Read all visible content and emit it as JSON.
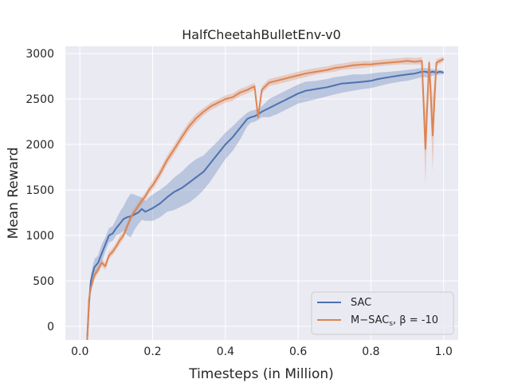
{
  "chart_data": {
    "type": "line",
    "title": "HalfCheetahBulletEnv-v0",
    "xlabel": "Timesteps (in Million)",
    "ylabel": "Mean Reward",
    "xlim": [
      -0.04,
      1.04
    ],
    "ylim": [
      -150,
      3080
    ],
    "xticks": [
      0.0,
      0.2,
      0.4,
      0.6,
      0.8,
      1.0
    ],
    "xtick_labels": [
      "0.0",
      "0.2",
      "0.4",
      "0.6",
      "0.8",
      "1.0"
    ],
    "yticks": [
      0,
      500,
      1000,
      1500,
      2000,
      2500,
      3000
    ],
    "ytick_labels": [
      "0",
      "500",
      "1000",
      "1500",
      "2000",
      "2500",
      "3000"
    ],
    "grid": true,
    "background": "#eaeaf2",
    "legend_position": "bottom-right",
    "series": [
      {
        "name": "SAC",
        "color": "#4c72b0",
        "x": [
          0.02,
          0.025,
          0.03,
          0.04,
          0.05,
          0.06,
          0.07,
          0.08,
          0.09,
          0.1,
          0.11,
          0.12,
          0.13,
          0.14,
          0.15,
          0.16,
          0.17,
          0.18,
          0.19,
          0.2,
          0.22,
          0.24,
          0.26,
          0.28,
          0.3,
          0.32,
          0.34,
          0.36,
          0.38,
          0.4,
          0.42,
          0.44,
          0.46,
          0.47,
          0.48,
          0.49,
          0.5,
          0.52,
          0.54,
          0.56,
          0.58,
          0.6,
          0.62,
          0.65,
          0.68,
          0.7,
          0.72,
          0.75,
          0.78,
          0.8,
          0.82,
          0.85,
          0.88,
          0.9,
          0.92,
          0.94,
          0.95,
          0.96,
          0.97,
          0.98,
          0.99,
          1.0
        ],
        "values": [
          -150,
          250,
          500,
          650,
          700,
          800,
          900,
          1000,
          1020,
          1080,
          1130,
          1180,
          1200,
          1210,
          1230,
          1250,
          1290,
          1260,
          1280,
          1300,
          1350,
          1420,
          1480,
          1520,
          1580,
          1640,
          1700,
          1800,
          1900,
          2000,
          2080,
          2180,
          2280,
          2300,
          2310,
          2330,
          2360,
          2400,
          2440,
          2480,
          2520,
          2560,
          2590,
          2610,
          2630,
          2650,
          2670,
          2680,
          2690,
          2700,
          2720,
          2740,
          2760,
          2770,
          2780,
          2800,
          2800,
          2790,
          2800,
          2790,
          2800,
          2790
        ],
        "lower": [
          -150,
          180,
          420,
          560,
          620,
          700,
          820,
          920,
          940,
          1000,
          1020,
          1050,
          1000,
          980,
          1060,
          1120,
          1170,
          1160,
          1160,
          1160,
          1200,
          1260,
          1280,
          1320,
          1360,
          1420,
          1500,
          1600,
          1720,
          1840,
          1930,
          2050,
          2200,
          2240,
          2250,
          2270,
          2300,
          2300,
          2330,
          2370,
          2410,
          2450,
          2470,
          2500,
          2530,
          2550,
          2570,
          2590,
          2610,
          2620,
          2640,
          2670,
          2690,
          2700,
          2720,
          2740,
          2740,
          2730,
          2760,
          2760,
          2770,
          2770
        ],
        "upper": [
          -150,
          320,
          580,
          740,
          780,
          900,
          980,
          1080,
          1100,
          1180,
          1260,
          1320,
          1400,
          1460,
          1450,
          1430,
          1420,
          1380,
          1420,
          1450,
          1500,
          1560,
          1640,
          1700,
          1780,
          1840,
          1880,
          1960,
          2040,
          2130,
          2200,
          2280,
          2350,
          2370,
          2380,
          2390,
          2420,
          2500,
          2540,
          2580,
          2620,
          2660,
          2690,
          2700,
          2720,
          2740,
          2750,
          2770,
          2770,
          2780,
          2790,
          2800,
          2810,
          2820,
          2830,
          2840,
          2840,
          2830,
          2830,
          2820,
          2820,
          2810
        ]
      },
      {
        "name": "M−SACs, β = -10",
        "color": "#dd8452",
        "x": [
          0.02,
          0.025,
          0.03,
          0.04,
          0.05,
          0.06,
          0.07,
          0.08,
          0.09,
          0.1,
          0.11,
          0.12,
          0.13,
          0.14,
          0.15,
          0.16,
          0.17,
          0.18,
          0.19,
          0.2,
          0.22,
          0.24,
          0.26,
          0.28,
          0.3,
          0.32,
          0.34,
          0.36,
          0.38,
          0.4,
          0.42,
          0.44,
          0.46,
          0.47,
          0.48,
          0.49,
          0.5,
          0.52,
          0.54,
          0.56,
          0.58,
          0.6,
          0.62,
          0.65,
          0.68,
          0.7,
          0.72,
          0.75,
          0.78,
          0.8,
          0.82,
          0.85,
          0.88,
          0.9,
          0.92,
          0.94,
          0.95,
          0.96,
          0.97,
          0.98,
          0.99,
          1.0
        ],
        "values": [
          -150,
          300,
          420,
          560,
          620,
          700,
          660,
          780,
          820,
          880,
          950,
          1000,
          1100,
          1200,
          1260,
          1320,
          1380,
          1430,
          1500,
          1550,
          1680,
          1830,
          1950,
          2080,
          2200,
          2290,
          2360,
          2420,
          2460,
          2500,
          2520,
          2570,
          2600,
          2620,
          2640,
          2300,
          2600,
          2680,
          2700,
          2720,
          2740,
          2760,
          2780,
          2800,
          2820,
          2840,
          2850,
          2870,
          2880,
          2880,
          2890,
          2900,
          2910,
          2920,
          2910,
          2920,
          1950,
          2900,
          2100,
          2900,
          2920,
          2940
        ],
        "lower": [
          -150,
          250,
          380,
          520,
          580,
          660,
          620,
          740,
          780,
          840,
          900,
          960,
          1060,
          1160,
          1220,
          1280,
          1340,
          1390,
          1460,
          1500,
          1630,
          1780,
          1900,
          2030,
          2150,
          2240,
          2320,
          2380,
          2420,
          2460,
          2480,
          2530,
          2560,
          2580,
          2600,
          2260,
          2560,
          2640,
          2660,
          2680,
          2700,
          2720,
          2740,
          2770,
          2790,
          2800,
          2820,
          2830,
          2840,
          2850,
          2860,
          2870,
          2880,
          2880,
          2880,
          2880,
          1550,
          2850,
          1700,
          2860,
          2890,
          2910
        ],
        "upper": [
          -150,
          350,
          460,
          600,
          660,
          740,
          700,
          820,
          860,
          920,
          1000,
          1040,
          1140,
          1240,
          1300,
          1360,
          1420,
          1470,
          1540,
          1600,
          1730,
          1880,
          2000,
          2130,
          2250,
          2340,
          2400,
          2460,
          2500,
          2540,
          2560,
          2610,
          2640,
          2660,
          2680,
          2340,
          2640,
          2720,
          2740,
          2760,
          2780,
          2800,
          2820,
          2840,
          2860,
          2880,
          2890,
          2910,
          2920,
          2920,
          2930,
          2940,
          2950,
          2960,
          2950,
          2960,
          2350,
          2950,
          2500,
          2940,
          2950,
          2970
        ]
      }
    ]
  },
  "legend": {
    "sac_label": "SAC",
    "msac_label": "M−SAC",
    "msac_sub": "s",
    "msac_suffix": ", β = -10"
  }
}
